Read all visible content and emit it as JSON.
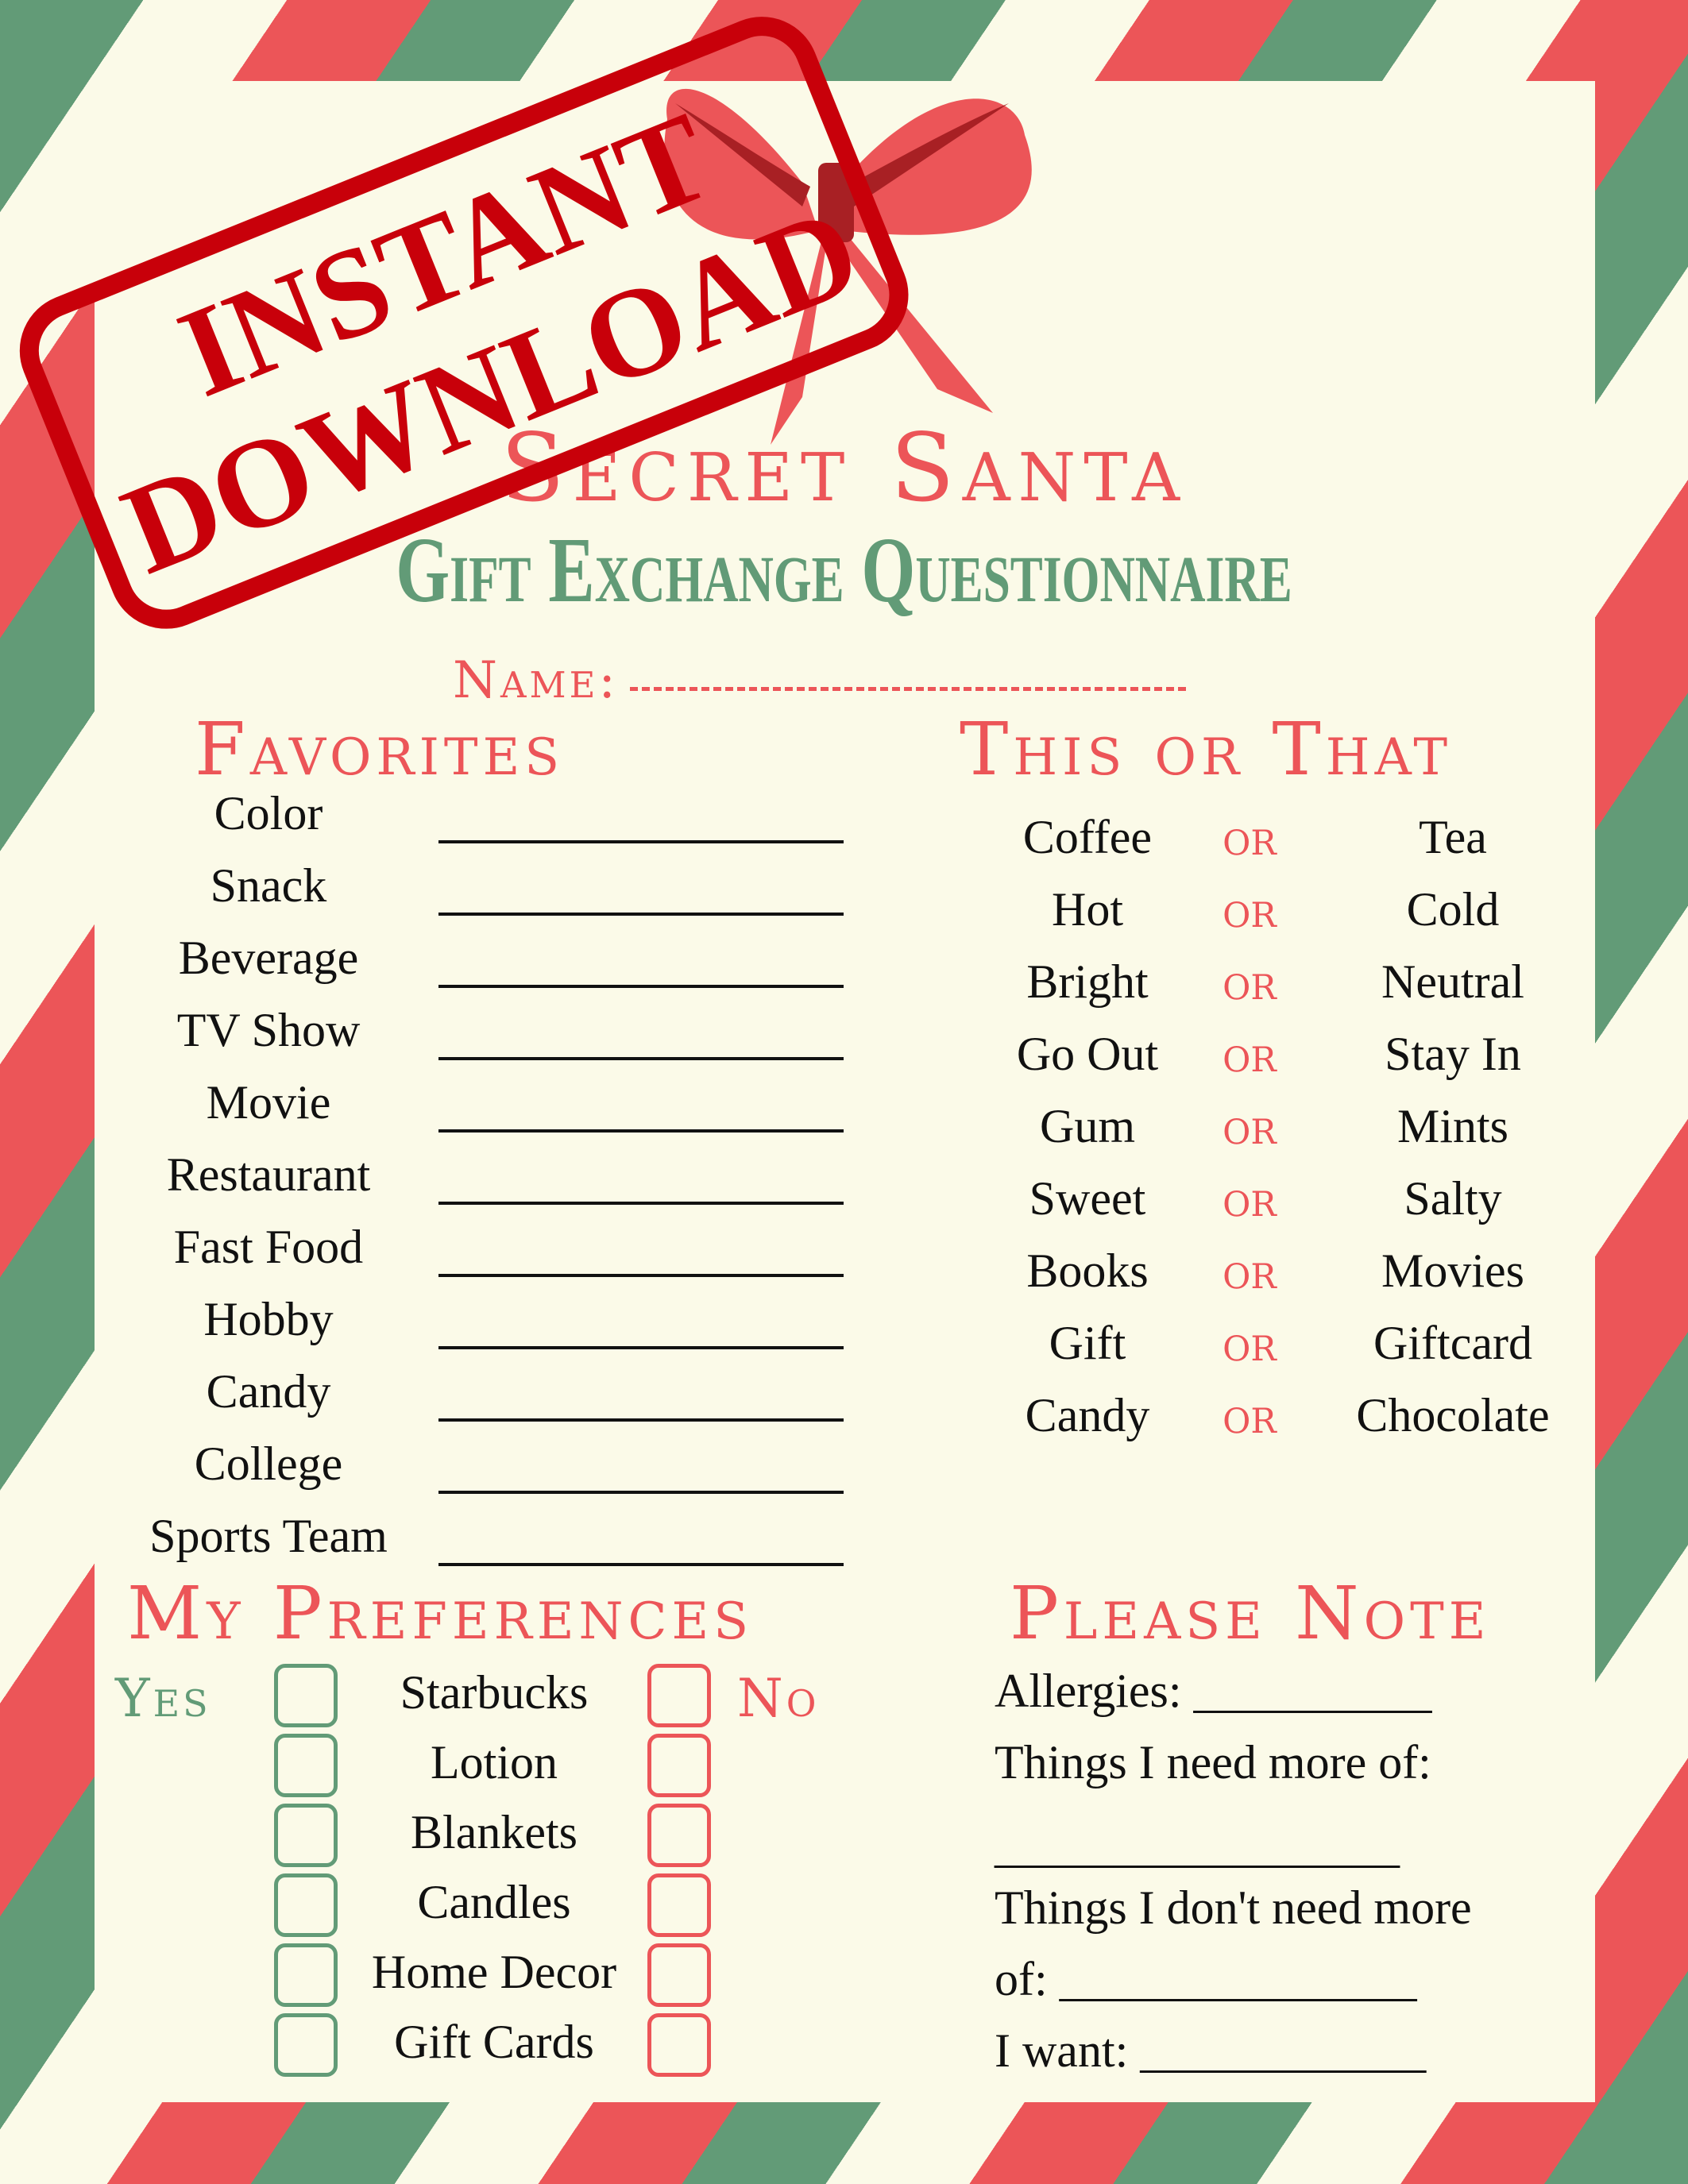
{
  "colors": {
    "red": "#ec5558",
    "green": "#629b77",
    "cream": "#fbfae8",
    "stamp": "#c8000a"
  },
  "stamp": {
    "line1": "INSTANT",
    "line2": "DOWNLOAD"
  },
  "title": "Secret Santa",
  "subtitle": "Gift Exchange Questionnaire",
  "name_label": "Name:",
  "favorites": {
    "heading": "Favorites",
    "items": [
      "Color",
      "Snack",
      "Beverage",
      "TV Show",
      "Movie",
      "Restaurant",
      "Fast Food",
      "Hobby",
      "Candy",
      "College",
      "Sports Team"
    ]
  },
  "this_or_that": {
    "heading": "This or That",
    "or_label": "or",
    "pairs": [
      [
        "Coffee",
        "Tea"
      ],
      [
        "Hot",
        "Cold"
      ],
      [
        "Bright",
        "Neutral"
      ],
      [
        "Go Out",
        "Stay In"
      ],
      [
        "Gum",
        "Mints"
      ],
      [
        "Sweet",
        "Salty"
      ],
      [
        "Books",
        "Movies"
      ],
      [
        "Gift",
        "Giftcard"
      ],
      [
        "Candy",
        "Chocolate"
      ]
    ]
  },
  "preferences": {
    "heading": "My Preferences",
    "yes_label": "Yes",
    "no_label": "No",
    "items": [
      "Starbucks",
      "Lotion",
      "Blankets",
      "Candles",
      "Home Decor",
      "Gift Cards"
    ]
  },
  "please_note": {
    "heading": "Please Note",
    "lines": [
      "Allergies: __________",
      "Things I need more of:",
      "_________________",
      "Things I don't need more",
      "of: _______________",
      "I want: ____________"
    ]
  }
}
